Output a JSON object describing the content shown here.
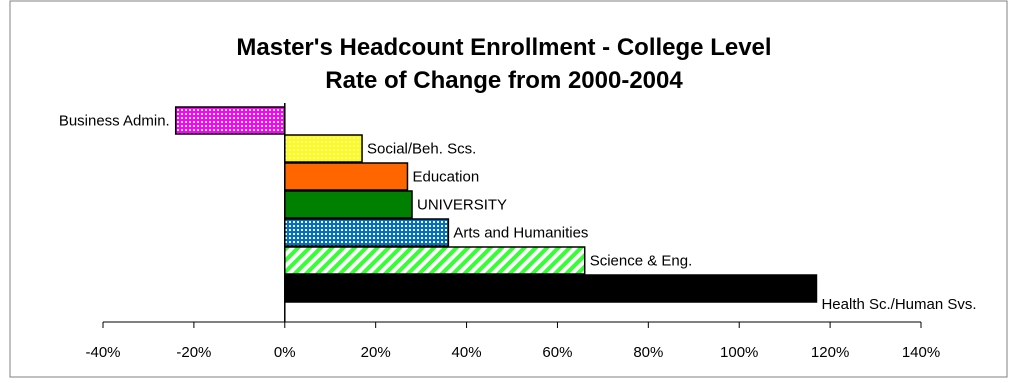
{
  "chart_data": {
    "type": "bar",
    "orientation": "horizontal",
    "title": [
      "Master's Headcount Enrollment - College Level",
      "Rate of Change from 2000-2004"
    ],
    "xlabel": "",
    "ylabel": "",
    "xlim": [
      -40,
      140
    ],
    "xticks": [
      "-40%",
      "-20%",
      "0%",
      "20%",
      "40%",
      "60%",
      "80%",
      "100%",
      "120%",
      "140%"
    ],
    "grid": false,
    "legend": "none",
    "categories": [
      "Business Admin.",
      "Social/Beh. Scs.",
      "Education",
      "UNIVERSITY",
      "Arts and Humanities",
      "Science & Eng.",
      "Health Sc./Human Svs."
    ],
    "values": [
      -24,
      17,
      27,
      28,
      36,
      66,
      117
    ],
    "fills": [
      {
        "pattern": "grid",
        "fg": "#ff00ff",
        "bg": "#ffffff"
      },
      {
        "pattern": "grid",
        "fg": "#ffff00",
        "bg": "#ffffff"
      },
      {
        "pattern": "solid",
        "fg": "#ff6600"
      },
      {
        "pattern": "solid",
        "fg": "#008000"
      },
      {
        "pattern": "grid",
        "fg": "#0070c0",
        "bg": "#ffffff"
      },
      {
        "pattern": "diagonal",
        "fg": "#33ff33",
        "bg": "#ffffff"
      },
      {
        "pattern": "solid",
        "fg": "#000000"
      }
    ]
  }
}
